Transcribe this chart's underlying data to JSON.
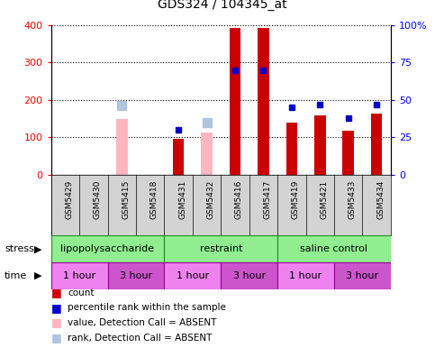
{
  "title": "GDS324 / 104345_at",
  "samples": [
    "GSM5429",
    "GSM5430",
    "GSM5415",
    "GSM5418",
    "GSM5431",
    "GSM5432",
    "GSM5416",
    "GSM5417",
    "GSM5419",
    "GSM5421",
    "GSM5433",
    "GSM5434"
  ],
  "count_values": [
    0,
    0,
    0,
    0,
    96,
    0,
    393,
    392,
    140,
    160,
    117,
    163
  ],
  "percentile_values": [
    0,
    0,
    0,
    0,
    30,
    0,
    70,
    70,
    45,
    47,
    38,
    47
  ],
  "absent_value_values": [
    0,
    0,
    150,
    0,
    0,
    112,
    0,
    0,
    0,
    0,
    0,
    0
  ],
  "absent_rank_values": [
    0,
    0,
    185,
    0,
    0,
    140,
    0,
    0,
    0,
    0,
    0,
    0
  ],
  "absent_flags": [
    false,
    false,
    true,
    false,
    false,
    true,
    false,
    false,
    false,
    false,
    false,
    false
  ],
  "stress_groups": [
    {
      "label": "lipopolysaccharide",
      "start": 0,
      "end": 4
    },
    {
      "label": "restraint",
      "start": 4,
      "end": 8
    },
    {
      "label": "saline control",
      "start": 8,
      "end": 12
    }
  ],
  "time_groups": [
    {
      "label": "1 hour",
      "start": 0,
      "end": 2,
      "color": "#ee82ee"
    },
    {
      "label": "3 hour",
      "start": 2,
      "end": 4,
      "color": "#cc55cc"
    },
    {
      "label": "1 hour",
      "start": 4,
      "end": 6,
      "color": "#ee82ee"
    },
    {
      "label": "3 hour",
      "start": 6,
      "end": 8,
      "color": "#cc55cc"
    },
    {
      "label": "1 hour",
      "start": 8,
      "end": 10,
      "color": "#ee82ee"
    },
    {
      "label": "3 hour",
      "start": 10,
      "end": 12,
      "color": "#cc55cc"
    }
  ],
  "count_color": "#cc0000",
  "absent_value_color": "#ffb6c1",
  "absent_rank_color": "#b0c4de",
  "percentile_color": "#0000cc",
  "ylim_left": [
    0,
    400
  ],
  "ylim_right": [
    0,
    100
  ],
  "stress_color": "#90ee90",
  "stress_border_color": "#228B22",
  "legend_items": [
    {
      "color": "#cc0000",
      "label": "count"
    },
    {
      "color": "#0000cc",
      "label": "percentile rank within the sample"
    },
    {
      "color": "#ffb6c1",
      "label": "value, Detection Call = ABSENT"
    },
    {
      "color": "#b0c4de",
      "label": "rank, Detection Call = ABSENT"
    }
  ]
}
